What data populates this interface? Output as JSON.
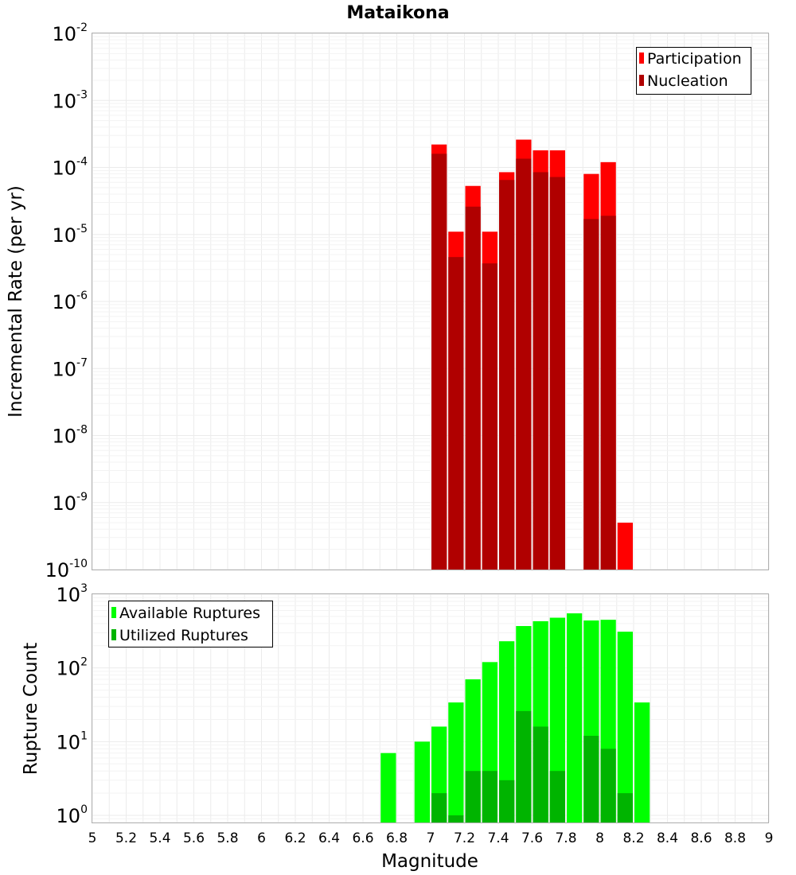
{
  "chart_data": [
    {
      "type": "bar",
      "panel": "top",
      "title": "Mataikona",
      "xlabel": "",
      "ylabel": "Incremental Rate (per yr)",
      "yscale": "log",
      "ylim": [
        1e-10,
        0.01
      ],
      "xlim": [
        5,
        9
      ],
      "y_tick_labels": [
        {
          "base": "10",
          "exp": "-10",
          "value": 1e-10
        },
        {
          "base": "10",
          "exp": "-9",
          "value": 1e-09
        },
        {
          "base": "10",
          "exp": "-8",
          "value": 1e-08
        },
        {
          "base": "10",
          "exp": "-7",
          "value": 1e-07
        },
        {
          "base": "10",
          "exp": "-6",
          "value": 1e-06
        },
        {
          "base": "10",
          "exp": "-5",
          "value": 1e-05
        },
        {
          "base": "10",
          "exp": "-4",
          "value": 0.0001
        },
        {
          "base": "10",
          "exp": "-3",
          "value": 0.001
        },
        {
          "base": "10",
          "exp": "-2",
          "value": 0.01
        }
      ],
      "legend": {
        "placement": "top-right",
        "entries": [
          {
            "label": "Participation",
            "color": "#ff0000"
          },
          {
            "label": "Nucleation",
            "color": "#b00000"
          }
        ]
      },
      "x": [
        7.0,
        7.1,
        7.2,
        7.3,
        7.4,
        7.5,
        7.6,
        7.7,
        7.8,
        7.9,
        8.0,
        8.1
      ],
      "series": [
        {
          "name": "Participation",
          "color": "#ff0000",
          "values": [
            0.00022,
            1.1e-05,
            5.3e-05,
            1.1e-05,
            8.5e-05,
            0.00026,
            0.00018,
            0.00018,
            null,
            8e-05,
            0.00012,
            5e-10
          ]
        },
        {
          "name": "Nucleation",
          "color": "#b00000",
          "values": [
            0.00016,
            4.6e-06,
            2.6e-05,
            3.7e-06,
            6.5e-05,
            0.000135,
            8.5e-05,
            7.2e-05,
            null,
            1.7e-05,
            1.9e-05,
            null
          ]
        }
      ]
    },
    {
      "type": "bar",
      "panel": "bottom",
      "title": "",
      "xlabel": "Magnitude",
      "ylabel": "Rupture Count",
      "yscale": "log",
      "ylim": [
        0.8,
        1000
      ],
      "xlim": [
        5,
        9
      ],
      "x_ticks": [
        "5",
        "5.2",
        "5.4",
        "5.6",
        "5.8",
        "6",
        "6.2",
        "6.4",
        "6.6",
        "6.8",
        "7",
        "7.2",
        "7.4",
        "7.6",
        "7.8",
        "8",
        "8.2",
        "8.4",
        "8.6",
        "8.8",
        "9"
      ],
      "y_tick_labels": [
        {
          "base": "10",
          "exp": "0",
          "value": 1
        },
        {
          "base": "10",
          "exp": "1",
          "value": 10
        },
        {
          "base": "10",
          "exp": "2",
          "value": 100
        },
        {
          "base": "10",
          "exp": "3",
          "value": 1000
        }
      ],
      "legend": {
        "placement": "top-left",
        "entries": [
          {
            "label": "Available Ruptures",
            "color": "#00ff00"
          },
          {
            "label": "Utilized Ruptures",
            "color": "#00b400"
          }
        ]
      },
      "x": [
        6.7,
        6.8,
        6.9,
        7.0,
        7.1,
        7.2,
        7.3,
        7.4,
        7.5,
        7.6,
        7.7,
        7.8,
        7.9,
        8.0,
        8.1,
        8.2
      ],
      "series": [
        {
          "name": "Available Ruptures",
          "color": "#00ff00",
          "values": [
            7,
            null,
            10,
            16,
            34,
            70,
            120,
            230,
            370,
            430,
            480,
            550,
            440,
            450,
            310,
            34
          ]
        },
        {
          "name": "Utilized Ruptures",
          "color": "#00b400",
          "values": [
            null,
            null,
            null,
            2,
            1,
            4,
            4,
            3,
            26,
            16,
            4,
            null,
            12,
            8,
            2,
            null
          ]
        }
      ]
    }
  ]
}
